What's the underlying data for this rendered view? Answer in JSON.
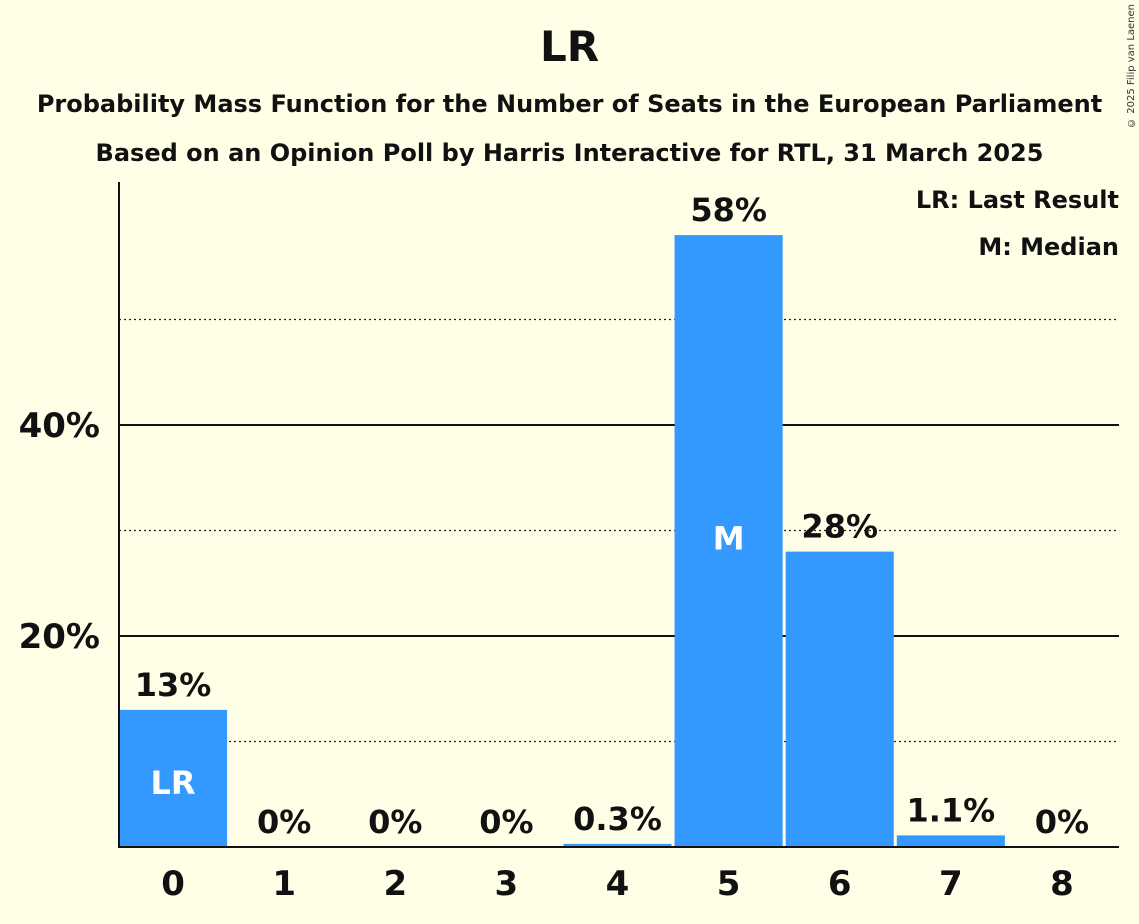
{
  "chart_data": {
    "type": "bar",
    "title": "LR",
    "subtitle": "Probability Mass Function for the Number of Seats in the European Parliament",
    "subtitle2": "Based on an Opinion Poll by Harris Interactive for RTL, 31 March 2025",
    "copyright": "© 2025 Filip van Laenen",
    "categories": [
      "0",
      "1",
      "2",
      "3",
      "4",
      "5",
      "6",
      "7",
      "8"
    ],
    "values": [
      13,
      0,
      0,
      0,
      0.3,
      58,
      28,
      1.1,
      0
    ],
    "value_labels": [
      "13%",
      "0%",
      "0%",
      "0%",
      "0.3%",
      "58%",
      "28%",
      "1.1%",
      "0%"
    ],
    "bar_markers": [
      "LR",
      "",
      "",
      "",
      "",
      "M",
      "",
      "",
      ""
    ],
    "legend": [
      "LR: Last Result",
      "M: Median"
    ],
    "yticks": [
      20,
      40
    ],
    "ytick_labels": [
      "20%",
      "40%"
    ],
    "minor_gridlines": [
      10,
      30,
      50
    ],
    "ylim": [
      0,
      63
    ],
    "bar_color": "#3399FF",
    "background_color": "#FFFEE6",
    "xlabel": "",
    "ylabel": ""
  }
}
